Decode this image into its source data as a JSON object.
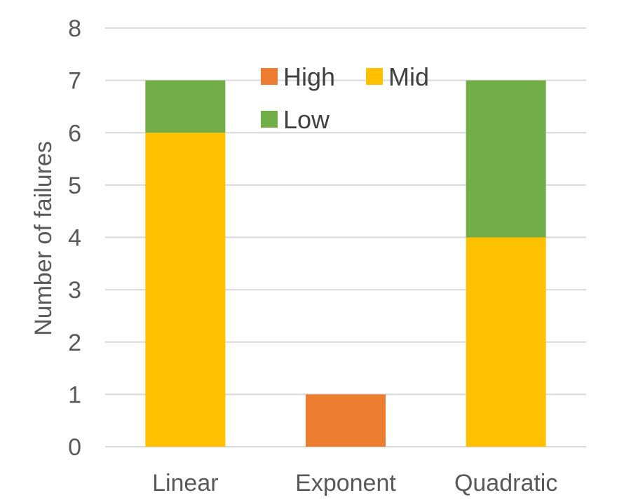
{
  "chart_data": {
    "type": "bar",
    "stacked": true,
    "categories": [
      "Linear",
      "Exponent",
      "Quadratic"
    ],
    "series": [
      {
        "name": "High",
        "color": "#ED7D31",
        "values": [
          0,
          1,
          0
        ]
      },
      {
        "name": "Mid",
        "color": "#FFC000",
        "values": [
          6,
          0,
          4
        ]
      },
      {
        "name": "Low",
        "color": "#70AD47",
        "values": [
          1,
          0,
          3
        ]
      }
    ],
    "ylabel": "Number of failures",
    "xlabel": "",
    "ylim": [
      0,
      8
    ],
    "yticks": [
      "0",
      "1",
      "2",
      "3",
      "4",
      "5",
      "6",
      "7",
      "8"
    ],
    "grid": true,
    "legend_position": "top-center"
  }
}
